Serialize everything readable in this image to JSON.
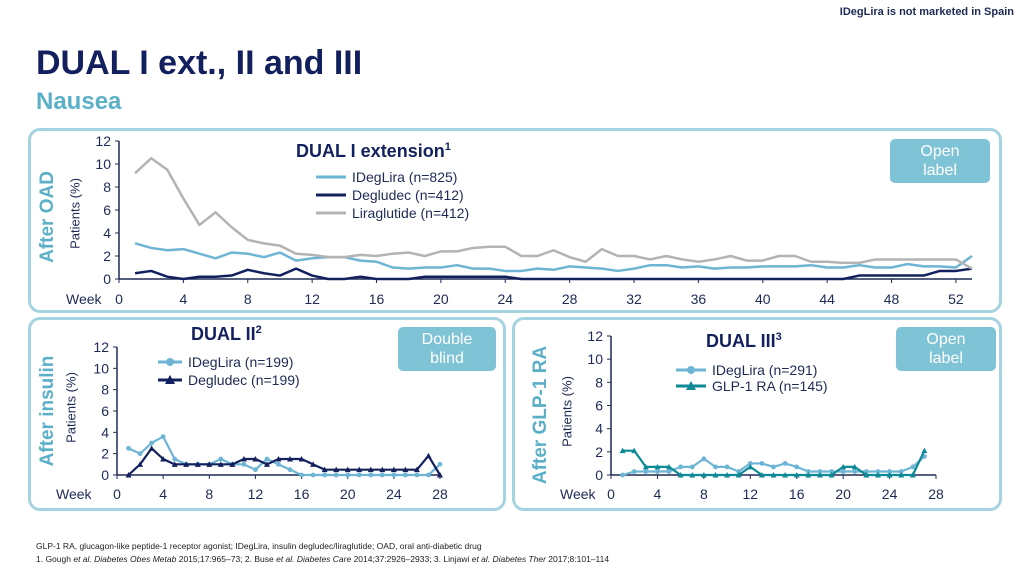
{
  "top_note": "IDegLira is not marketed in Spain",
  "title": "DUAL I ext., II and III",
  "subtitle": "Nausea",
  "footer": {
    "line1": "GLP-1 RA, glucagon-like peptide-1 receptor agonist; IDegLira, insulin degludec/liraglutide; OAD, oral anti-diabetic drug",
    "line2_parts": [
      {
        "text": "1. Gough ",
        "italic": false
      },
      {
        "text": "et al. Diabetes Obes Metab",
        "italic": true
      },
      {
        "text": " 2015;17:965–73; 2. Buse ",
        "italic": false
      },
      {
        "text": "et al. Diabetes Care",
        "italic": true
      },
      {
        "text": " 2014;37:2926–2933; 3. Linjawi ",
        "italic": false
      },
      {
        "text": "et al. Diabetes Ther",
        "italic": true
      },
      {
        "text": " 2017;8:101–114",
        "italic": false
      }
    ]
  },
  "colors": {
    "ideglira": "#6eb4d4",
    "degludec": "#13205e",
    "liraglutide": "#b3b3b3",
    "glp1": "#0e8a96",
    "panel_border": "#a6d3e0",
    "label_teal": "#5bb0c8"
  },
  "panels": {
    "dual1": {
      "side_label": "After OAD",
      "ylabel": "Patients (%)",
      "title": "DUAL I extension",
      "title_ref": "1",
      "badge": [
        "Open",
        "label"
      ]
    },
    "dual2": {
      "side_label": "After insulin",
      "ylabel": "Patients (%)",
      "title": "DUAL II",
      "title_ref": "2",
      "badge": [
        "Double",
        "blind"
      ]
    },
    "dual3": {
      "side_label": "After GLP-1 RA",
      "ylabel": "Patients (%)",
      "title": "DUAL III",
      "title_ref": "3",
      "badge": [
        "Open",
        "label"
      ]
    }
  },
  "chart_data": [
    {
      "id": "dual1",
      "type": "line",
      "title": "DUAL I extension",
      "xlabel": "Week",
      "ylabel": "Patients (%)",
      "xlim": [
        0,
        53
      ],
      "ylim": [
        0,
        12
      ],
      "xticks": [
        0,
        4,
        8,
        12,
        16,
        20,
        24,
        28,
        32,
        36,
        40,
        44,
        48,
        52
      ],
      "yticks": [
        0,
        2,
        4,
        6,
        8,
        10,
        12
      ],
      "x": [
        1,
        2,
        3,
        4,
        5,
        6,
        7,
        8,
        9,
        10,
        11,
        12,
        13,
        14,
        15,
        16,
        17,
        18,
        19,
        20,
        21,
        22,
        23,
        24,
        25,
        26,
        27,
        28,
        29,
        30,
        31,
        32,
        33,
        34,
        35,
        36,
        37,
        38,
        39,
        40,
        41,
        42,
        43,
        44,
        45,
        46,
        47,
        48,
        49,
        50,
        51,
        52,
        53
      ],
      "legend_position": "top-center",
      "series": [
        {
          "name": "IDegLira (n=825)",
          "color_key": "ideglira",
          "marker": "none",
          "values": [
            3.1,
            2.7,
            2.5,
            2.6,
            2.2,
            1.8,
            2.3,
            2.2,
            1.9,
            2.3,
            1.6,
            1.8,
            1.9,
            1.9,
            1.6,
            1.5,
            1.0,
            0.9,
            1.0,
            1.0,
            1.2,
            0.9,
            0.9,
            0.7,
            0.7,
            0.9,
            0.8,
            1.1,
            1.0,
            0.9,
            0.7,
            0.9,
            1.2,
            1.2,
            1.0,
            1.1,
            0.9,
            1.0,
            1.0,
            1.1,
            1.1,
            1.1,
            1.2,
            1.0,
            1.0,
            1.2,
            1.0,
            1.0,
            1.3,
            1.1,
            1.1,
            1.0,
            2.0
          ]
        },
        {
          "name": "Degludec (n=412)",
          "color_key": "degludec",
          "marker": "none",
          "values": [
            0.5,
            0.7,
            0.2,
            0.0,
            0.2,
            0.2,
            0.3,
            0.8,
            0.5,
            0.3,
            0.9,
            0.3,
            0.0,
            0.0,
            0.2,
            0.0,
            0.0,
            0.0,
            0.2,
            0.2,
            0.2,
            0.2,
            0.2,
            0.2,
            0.0,
            0.0,
            0.0,
            0.0,
            0.0,
            0.0,
            0.0,
            0.0,
            0.0,
            0.0,
            0.0,
            0.0,
            0.0,
            0.0,
            0.0,
            0.0,
            0.0,
            0.0,
            0.0,
            0.0,
            0.0,
            0.3,
            0.3,
            0.3,
            0.3,
            0.3,
            0.7,
            0.7,
            0.9
          ]
        },
        {
          "name": "Liraglutide (n=412)",
          "color_key": "liraglutide",
          "marker": "none",
          "values": [
            9.2,
            10.5,
            9.5,
            7.0,
            4.7,
            5.8,
            4.5,
            3.4,
            3.1,
            2.9,
            2.2,
            2.1,
            1.9,
            1.9,
            2.1,
            2.0,
            2.2,
            2.3,
            2.0,
            2.4,
            2.4,
            2.7,
            2.8,
            2.8,
            2.0,
            2.0,
            2.5,
            1.9,
            1.5,
            2.6,
            2.0,
            2.0,
            1.7,
            2.0,
            1.7,
            1.5,
            1.7,
            2.0,
            1.6,
            1.6,
            2.0,
            2.0,
            1.5,
            1.5,
            1.4,
            1.4,
            1.7,
            1.7,
            1.7,
            1.7,
            1.7,
            1.7,
            0.9
          ]
        }
      ]
    },
    {
      "id": "dual2",
      "type": "line",
      "title": "DUAL II",
      "xlabel": "Week",
      "ylabel": "Patients (%)",
      "xlim": [
        0,
        28
      ],
      "ylim": [
        0,
        12
      ],
      "xticks": [
        0,
        4,
        8,
        12,
        16,
        20,
        24,
        28
      ],
      "yticks": [
        0,
        2,
        4,
        6,
        8,
        10,
        12
      ],
      "x": [
        1,
        2,
        3,
        4,
        5,
        6,
        7,
        8,
        9,
        10,
        11,
        12,
        13,
        14,
        15,
        16,
        17,
        18,
        19,
        20,
        21,
        22,
        23,
        24,
        25,
        26,
        27,
        28
      ],
      "legend_position": "top-left",
      "series": [
        {
          "name": "IDegLira (n=199)",
          "color_key": "ideglira",
          "marker": "circle",
          "values": [
            2.5,
            2.0,
            3.0,
            3.6,
            1.5,
            1.0,
            1.0,
            1.0,
            1.5,
            1.0,
            1.0,
            0.5,
            1.5,
            1.0,
            0.5,
            0.0,
            0.0,
            0.0,
            0.0,
            0.0,
            0.0,
            0.0,
            0.0,
            0.0,
            0.0,
            0.0,
            0.0,
            1.0
          ]
        },
        {
          "name": "Degludec (n=199)",
          "color_key": "degludec",
          "marker": "triangle",
          "values": [
            0.0,
            1.0,
            2.5,
            1.5,
            1.0,
            1.0,
            1.0,
            1.0,
            1.0,
            1.0,
            1.5,
            1.5,
            1.0,
            1.5,
            1.5,
            1.5,
            1.0,
            0.5,
            0.5,
            0.5,
            0.5,
            0.5,
            0.5,
            0.5,
            0.5,
            0.5,
            1.8,
            0.0
          ]
        }
      ]
    },
    {
      "id": "dual3",
      "type": "line",
      "title": "DUAL III",
      "xlabel": "Week",
      "ylabel": "Patients (%)",
      "xlim": [
        0,
        28
      ],
      "ylim": [
        0,
        12
      ],
      "xticks": [
        0,
        4,
        8,
        12,
        16,
        20,
        24,
        28
      ],
      "yticks": [
        0,
        2,
        4,
        6,
        8,
        10,
        12
      ],
      "x": [
        1,
        2,
        3,
        4,
        5,
        6,
        7,
        8,
        9,
        10,
        11,
        12,
        13,
        14,
        15,
        16,
        17,
        18,
        19,
        20,
        21,
        22,
        23,
        24,
        25,
        26,
        27
      ],
      "legend_position": "top-right",
      "series": [
        {
          "name": "IDegLira (n=291)",
          "color_key": "ideglira",
          "marker": "circle",
          "values": [
            0.0,
            0.3,
            0.3,
            0.3,
            0.3,
            0.7,
            0.7,
            1.4,
            0.7,
            0.7,
            0.3,
            1.0,
            1.0,
            0.7,
            1.0,
            0.7,
            0.3,
            0.3,
            0.3,
            0.3,
            0.3,
            0.3,
            0.3,
            0.3,
            0.3,
            0.7,
            1.6
          ]
        },
        {
          "name": "GLP-1 RA (n=145)",
          "color_key": "glp1",
          "marker": "triangle",
          "values": [
            2.1,
            2.1,
            0.7,
            0.7,
            0.7,
            0.0,
            0.0,
            0.0,
            0.0,
            0.0,
            0.0,
            0.7,
            0.0,
            0.0,
            0.0,
            0.0,
            0.0,
            0.0,
            0.0,
            0.7,
            0.7,
            0.0,
            0.0,
            0.0,
            0.0,
            0.0,
            2.1
          ]
        }
      ]
    }
  ]
}
